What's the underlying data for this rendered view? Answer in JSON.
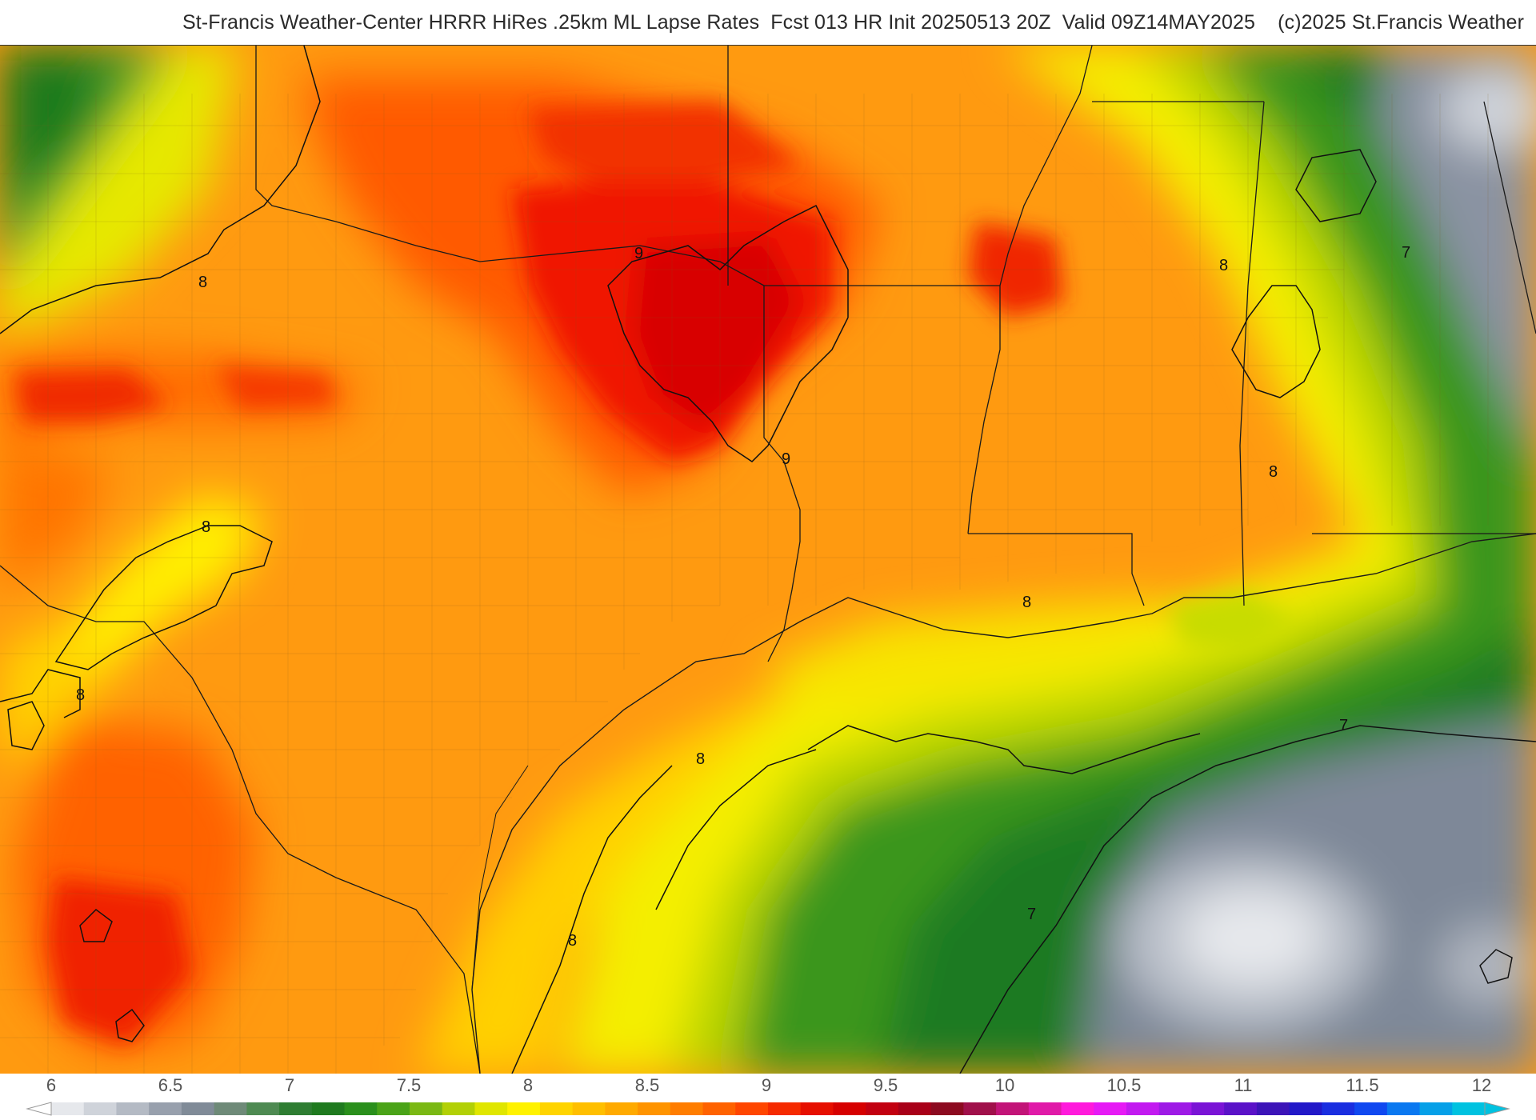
{
  "header": {
    "title": "St-Francis Weather-Center HRRR HiRes .25km ML Lapse Rates  Fcst 013 HR Init 20250513 20Z  Valid 09Z14MAY2025    (c)2025 St.Francis Weather"
  },
  "map": {
    "contour_labels": [
      "8",
      "8",
      "8",
      "8",
      "8",
      "8",
      "8",
      "8",
      "9",
      "9",
      "7",
      "7",
      "7"
    ]
  },
  "colorbar": {
    "ticks": [
      "6",
      "6.5",
      "7",
      "7.5",
      "8",
      "8.5",
      "9",
      "9.5",
      "10",
      "10.5",
      "11",
      "11.5",
      "12"
    ],
    "colors": [
      "#e6e8ec",
      "#cfd3da",
      "#b4bac4",
      "#98a0ad",
      "#808b98",
      "#6e8a78",
      "#4e8a52",
      "#2e7d32",
      "#1f7a1f",
      "#2a8f1c",
      "#4aa318",
      "#7ab814",
      "#b2d006",
      "#e0e600",
      "#fff200",
      "#ffd400",
      "#ffbf00",
      "#ffaa00",
      "#ff9400",
      "#ff7d00",
      "#ff6200",
      "#ff4600",
      "#f52a00",
      "#e60f00",
      "#d60000",
      "#c20010",
      "#a80018",
      "#8c0a20",
      "#a0104a",
      "#c21478",
      "#e01aa8",
      "#ff1adc",
      "#e61af5",
      "#c21af0",
      "#9e1ae6",
      "#7a14d6",
      "#5a12c8",
      "#3c14b8",
      "#2218c8",
      "#1a2ee0",
      "#1048f0",
      "#0a78f0",
      "#06a0e8",
      "#00c2e0"
    ]
  }
}
